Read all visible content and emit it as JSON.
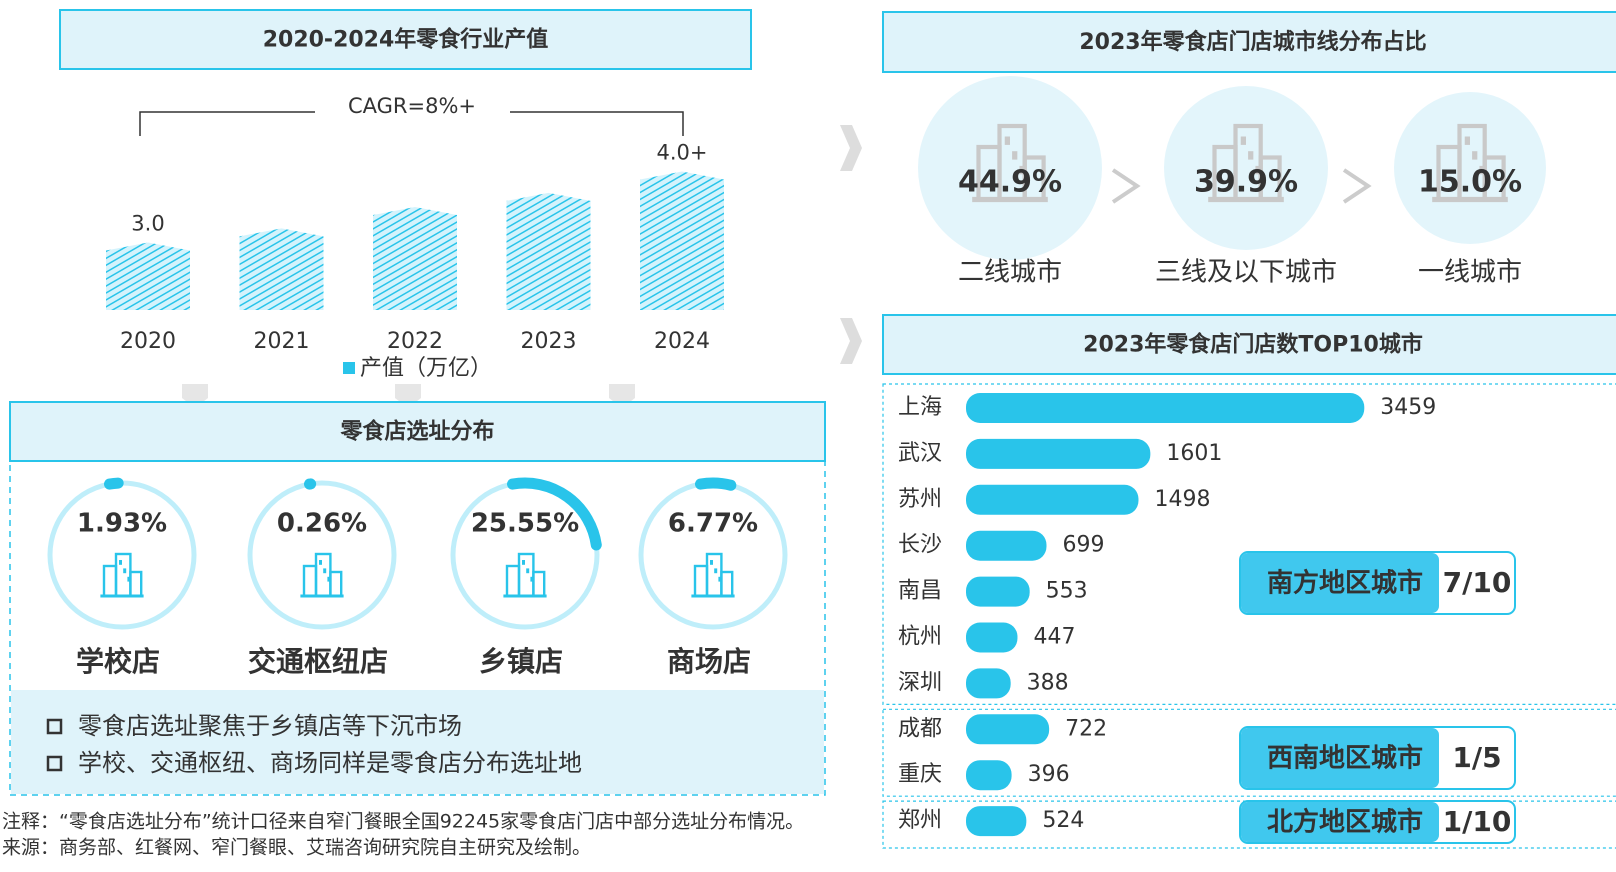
{
  "chart_data": [
    {
      "type": "bar",
      "title": "2020-2024年零食行业产值",
      "annotation": "CAGR=8%+",
      "categories": [
        "2020",
        "2021",
        "2022",
        "2023",
        "2024"
      ],
      "series": [
        {
          "name": "产值（万亿）",
          "color": "#29c4ea",
          "values": [
            3.0,
            3.2,
            3.5,
            3.7,
            4.0
          ],
          "value_labels": [
            "3.0",
            null,
            null,
            null,
            "4.0+"
          ]
        }
      ],
      "ylim": [
        2.05,
        4.05
      ]
    },
    {
      "type": "percent-circles",
      "title": "2023年零食店门店城市线分布占比",
      "categories": [
        "二线城市",
        "三线及以下城市",
        "一线城市"
      ],
      "values": [
        44.9,
        39.9,
        15.0
      ],
      "value_labels": [
        "44.9%",
        "39.9%",
        "15.0%"
      ],
      "color": "#29b6e6"
    },
    {
      "type": "gauge",
      "title": "零食店选址分布",
      "categories": [
        "学校店",
        "交通枢纽店",
        "乡镇店",
        "商场店"
      ],
      "values": [
        1.93,
        0.26,
        25.55,
        6.77
      ],
      "value_labels": [
        "1.93%",
        "0.26%",
        "25.55%",
        "6.77%"
      ],
      "color": "#29c4ea",
      "notes": [
        "零食店选址聚焦于乡镇店等下沉市场",
        "学校、交通枢纽、商场同样是零食店分布选址地"
      ]
    },
    {
      "type": "hbar",
      "title": "2023年零食店门店数TOP10城市",
      "categories": [
        "上海",
        "武汉",
        "苏州",
        "长沙",
        "南昌",
        "杭州",
        "深圳",
        "成都",
        "重庆",
        "郑州"
      ],
      "values": [
        3459,
        1601,
        1498,
        699,
        553,
        447,
        388,
        722,
        396,
        524
      ],
      "color": "#29c4ea",
      "xlim": [
        0,
        3500
      ],
      "groups": [
        {
          "name": "南方地区城市",
          "ratio": "7/10"
        },
        {
          "name": "西南地区城市",
          "ratio": "1/5"
        },
        {
          "name": "北方地区城市",
          "ratio": "1/10"
        }
      ]
    }
  ],
  "footnotes": [
    "注释：“零食店选址分布”统计口径来自窄门餐眼全国92245家零食店门店中部分选址分布情况。",
    "来源：商务部、红餐网、窄门餐眼、艾瑞咨询研究院自主研究及绘制。"
  ]
}
